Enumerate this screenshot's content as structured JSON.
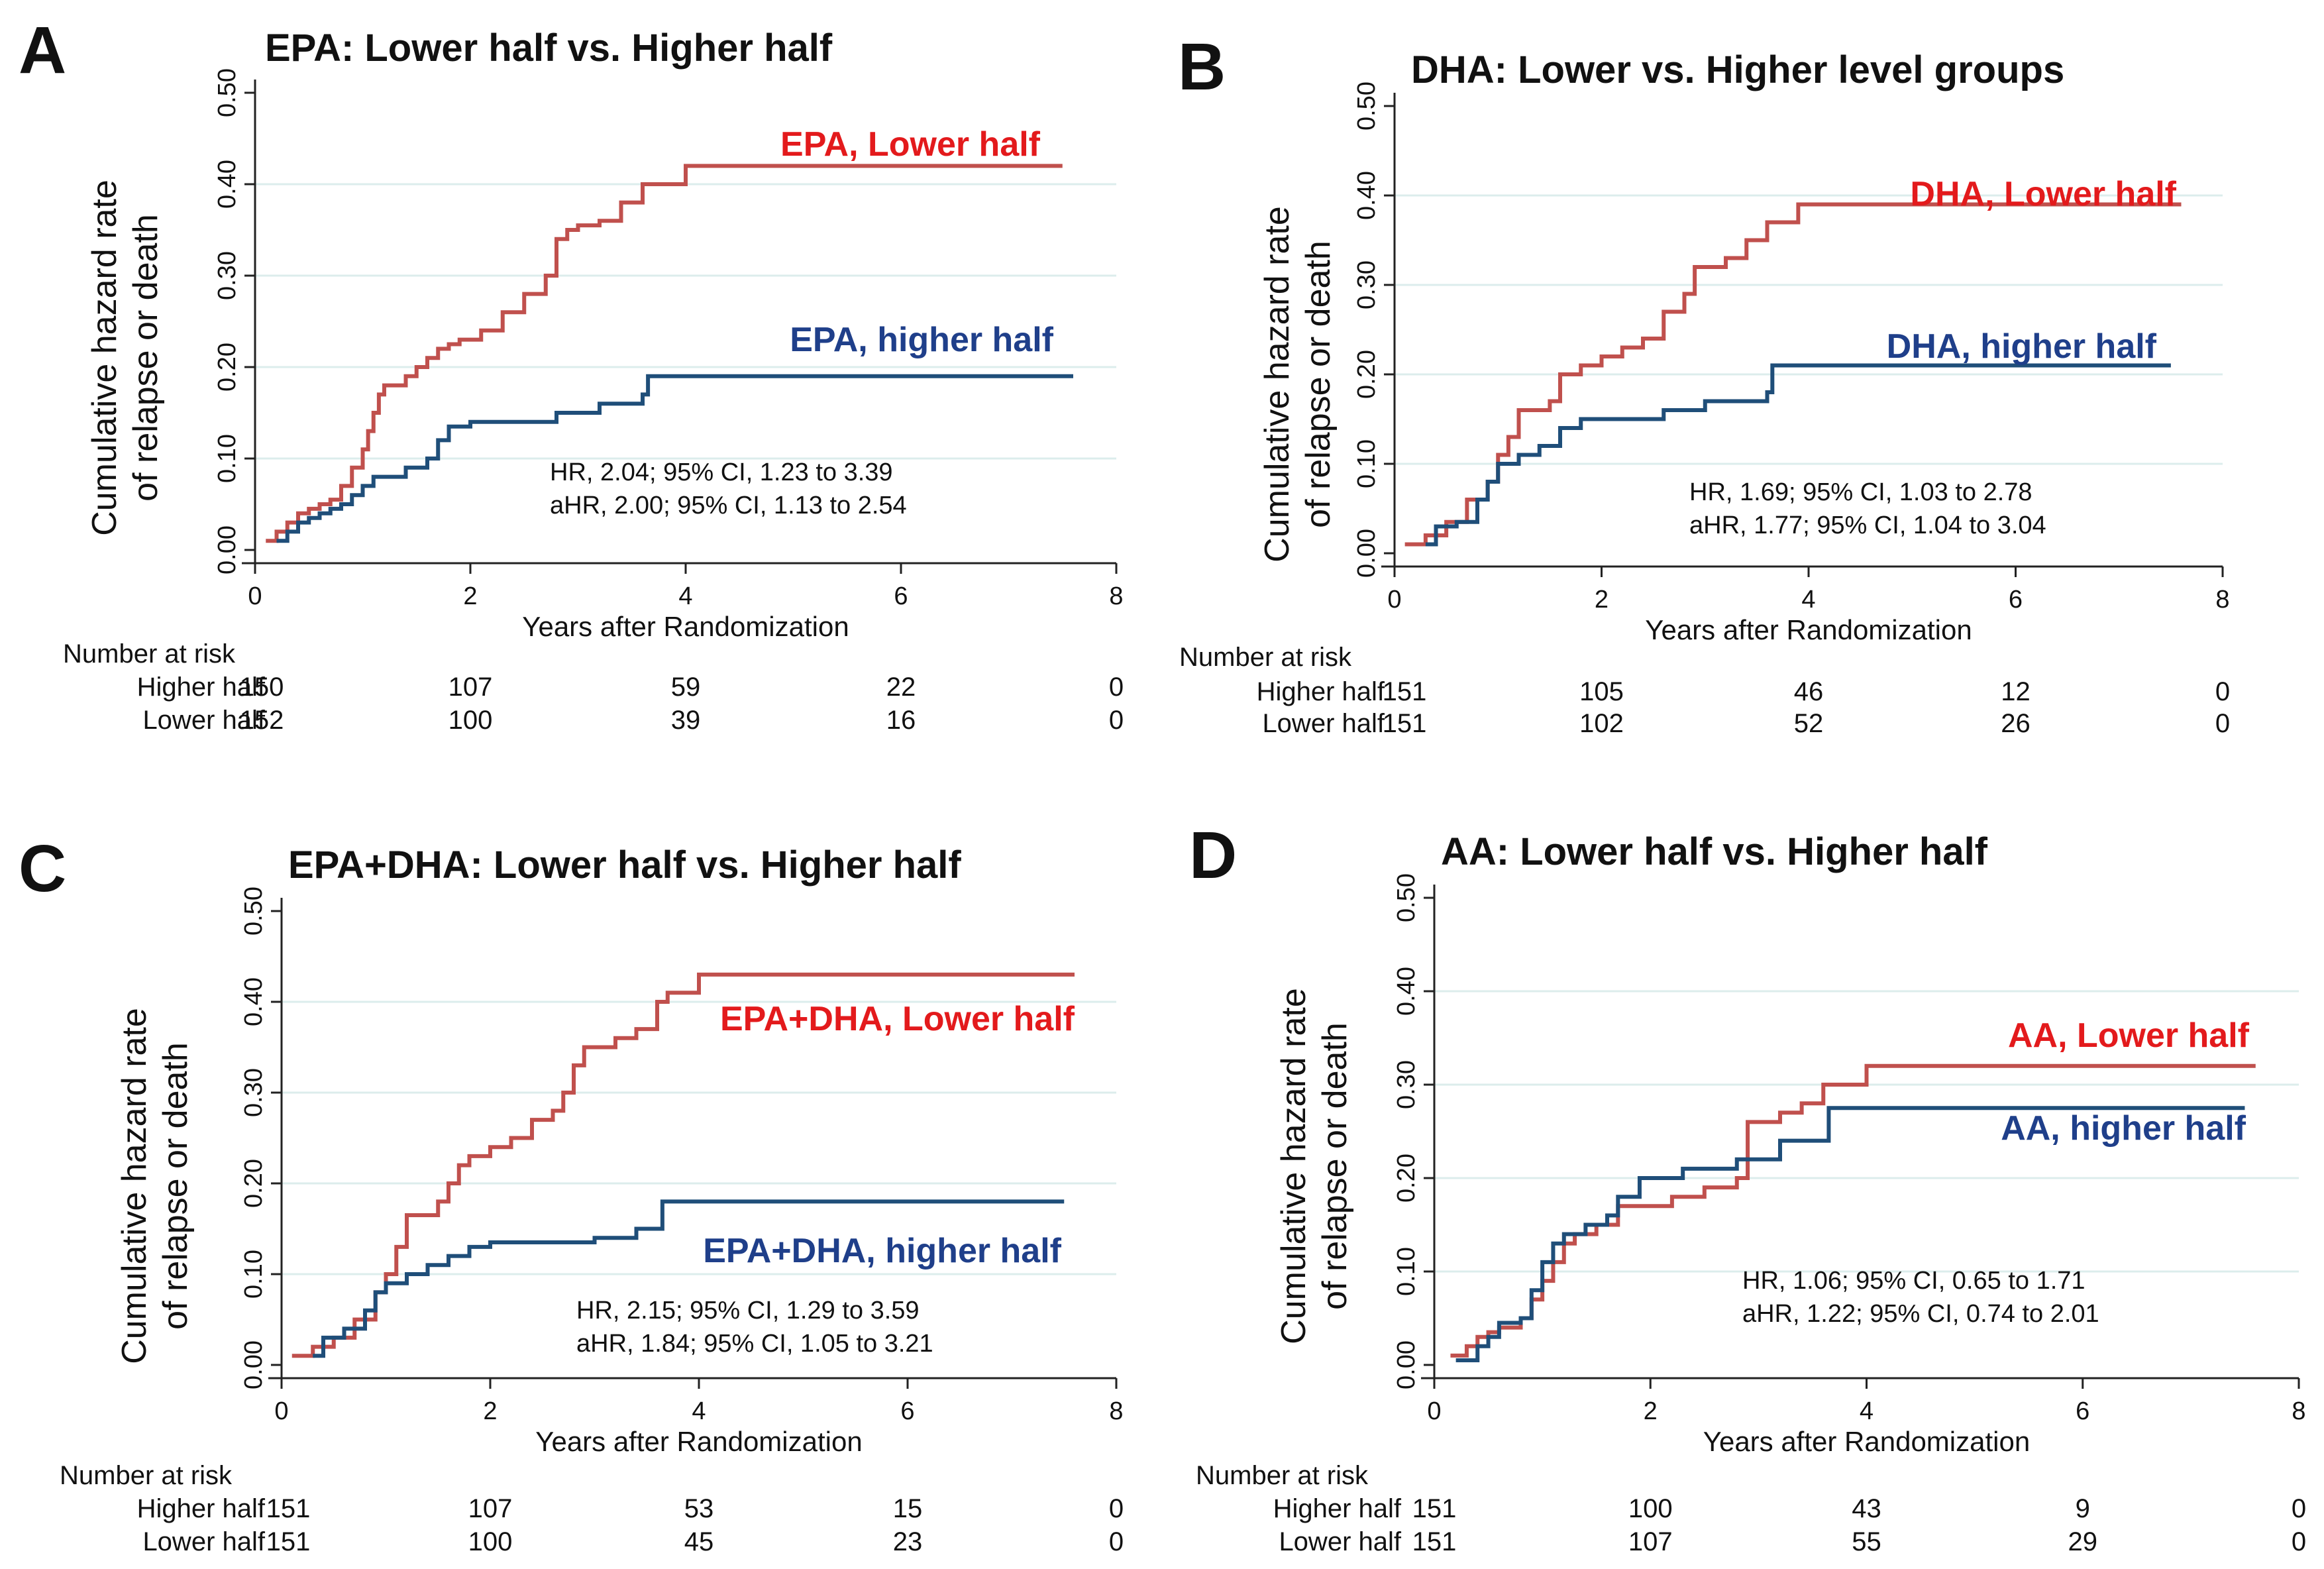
{
  "colors": {
    "lower": "#C0504D",
    "higher": "#1F4E79",
    "grid": "#DCEDEC",
    "axis": "#222222",
    "lower_label": "#E31A1C",
    "higher_label": "#1F3F8A"
  },
  "shared": {
    "ylabel_line1": "Cumulative hazard rate",
    "ylabel_line2": "of relapse or death",
    "xlabel": "Years after Randomization",
    "xticks": [
      0,
      2,
      4,
      6,
      8
    ],
    "yticks": [
      "0.00",
      "0.10",
      "0.20",
      "0.30",
      "0.40",
      "0.50"
    ],
    "risk_title": "Number at risk",
    "risk_higher_label": "Higher half",
    "risk_lower_label": "Lower half"
  },
  "chart_data": [
    {
      "type": "line",
      "panel": "A",
      "title": "EPA: Lower half vs. Higher half",
      "xlabel": "Years after Randomization",
      "ylabel": "Cumulative hazard rate of relapse or death",
      "xlim": [
        0,
        8
      ],
      "ylim": [
        0,
        0.5
      ],
      "series": [
        {
          "name": "EPA, Lower half",
          "group": "lower",
          "x": [
            0.1,
            0.2,
            0.3,
            0.4,
            0.5,
            0.6,
            0.7,
            0.8,
            0.9,
            1.0,
            1.05,
            1.1,
            1.15,
            1.2,
            1.25,
            1.3,
            1.4,
            1.5,
            1.6,
            1.7,
            1.8,
            1.9,
            2.0,
            2.1,
            2.3,
            2.5,
            2.7,
            2.8,
            2.9,
            3.0,
            3.2,
            3.4,
            3.6,
            4.0,
            7.5
          ],
          "y": [
            0.01,
            0.02,
            0.03,
            0.04,
            0.045,
            0.05,
            0.055,
            0.07,
            0.09,
            0.11,
            0.13,
            0.15,
            0.17,
            0.18,
            0.18,
            0.18,
            0.19,
            0.2,
            0.21,
            0.22,
            0.225,
            0.23,
            0.23,
            0.24,
            0.26,
            0.28,
            0.3,
            0.34,
            0.35,
            0.355,
            0.36,
            0.38,
            0.4,
            0.42,
            0.42
          ]
        },
        {
          "name": "EPA, higher half",
          "group": "higher",
          "x": [
            0.2,
            0.3,
            0.4,
            0.5,
            0.6,
            0.7,
            0.8,
            0.9,
            1.0,
            1.1,
            1.2,
            1.4,
            1.6,
            1.7,
            1.8,
            2.0,
            2.4,
            2.8,
            3.2,
            3.6,
            3.65,
            7.6
          ],
          "y": [
            0.01,
            0.02,
            0.03,
            0.035,
            0.04,
            0.045,
            0.05,
            0.06,
            0.07,
            0.08,
            0.08,
            0.09,
            0.1,
            0.12,
            0.135,
            0.14,
            0.14,
            0.15,
            0.16,
            0.17,
            0.19,
            0.19
          ]
        }
      ],
      "labels": {
        "lower": "EPA, Lower half",
        "higher": "EPA, higher half"
      },
      "stats": [
        "HR, 2.04; 95% CI, 1.23 to 3.39",
        "aHR, 2.00; 95% CI, 1.13 to 2.54"
      ],
      "risk": {
        "higher": [
          "150",
          "107",
          "59",
          "22",
          "0"
        ],
        "lower": [
          "152",
          "100",
          "39",
          "16",
          "0"
        ]
      }
    },
    {
      "type": "line",
      "panel": "B",
      "title": "DHA: Lower  vs. Higher level groups",
      "xlabel": "Years after Randomization",
      "ylabel": "Cumulative hazard rate of relapse or death",
      "xlim": [
        0,
        8
      ],
      "ylim": [
        0,
        0.5
      ],
      "series": [
        {
          "name": "DHA, Lower half",
          "group": "lower",
          "x": [
            0.1,
            0.3,
            0.5,
            0.7,
            0.9,
            1.0,
            1.1,
            1.2,
            1.5,
            1.6,
            1.8,
            2.0,
            2.2,
            2.4,
            2.6,
            2.8,
            2.9,
            3.2,
            3.4,
            3.6,
            3.9,
            7.6
          ],
          "y": [
            0.01,
            0.02,
            0.035,
            0.06,
            0.08,
            0.11,
            0.13,
            0.16,
            0.17,
            0.2,
            0.21,
            0.22,
            0.23,
            0.24,
            0.27,
            0.29,
            0.32,
            0.33,
            0.35,
            0.37,
            0.39,
            0.39
          ]
        },
        {
          "name": "DHA, higher half",
          "group": "higher",
          "x": [
            0.3,
            0.4,
            0.6,
            0.8,
            0.9,
            1.0,
            1.2,
            1.4,
            1.6,
            1.8,
            2.0,
            2.6,
            3.0,
            3.6,
            3.65,
            7.5
          ],
          "y": [
            0.01,
            0.03,
            0.035,
            0.06,
            0.08,
            0.1,
            0.11,
            0.12,
            0.14,
            0.15,
            0.15,
            0.16,
            0.17,
            0.18,
            0.21,
            0.21
          ]
        }
      ],
      "labels": {
        "lower": "DHA, Lower half",
        "higher": "DHA, higher half"
      },
      "stats": [
        "HR, 1.69; 95% CI, 1.03 to 2.78",
        "aHR, 1.77; 95% CI, 1.04 to 3.04"
      ],
      "risk": {
        "higher": [
          "151",
          "105",
          "46",
          "12",
          "0"
        ],
        "lower": [
          "151",
          "102",
          "52",
          "26",
          "0"
        ]
      }
    },
    {
      "type": "line",
      "panel": "C",
      "title": "EPA+DHA: Lower half vs. Higher half",
      "xlabel": "Years after Randomization",
      "ylabel": "Cumulative hazard rate of relapse or death",
      "xlim": [
        0,
        8
      ],
      "ylim": [
        0,
        0.5
      ],
      "series": [
        {
          "name": "EPA+DHA, Lower half",
          "group": "lower",
          "x": [
            0.1,
            0.3,
            0.5,
            0.7,
            0.9,
            1.0,
            1.1,
            1.2,
            1.3,
            1.5,
            1.6,
            1.7,
            1.8,
            2.0,
            2.2,
            2.4,
            2.6,
            2.7,
            2.8,
            2.9,
            3.2,
            3.4,
            3.6,
            3.7,
            4.0,
            7.6
          ],
          "y": [
            0.01,
            0.02,
            0.03,
            0.05,
            0.08,
            0.1,
            0.13,
            0.165,
            0.165,
            0.18,
            0.2,
            0.22,
            0.23,
            0.24,
            0.25,
            0.27,
            0.28,
            0.3,
            0.33,
            0.35,
            0.36,
            0.37,
            0.4,
            0.41,
            0.43,
            0.43
          ]
        },
        {
          "name": "EPA+DHA, higher half",
          "group": "higher",
          "x": [
            0.3,
            0.4,
            0.6,
            0.8,
            0.9,
            1.0,
            1.2,
            1.4,
            1.6,
            1.8,
            2.0,
            3.0,
            3.4,
            3.6,
            3.65,
            7.5
          ],
          "y": [
            0.01,
            0.03,
            0.04,
            0.06,
            0.08,
            0.09,
            0.1,
            0.11,
            0.12,
            0.13,
            0.135,
            0.14,
            0.15,
            0.15,
            0.18,
            0.18
          ]
        }
      ],
      "labels": {
        "lower": "EPA+DHA, Lower half",
        "higher": "EPA+DHA, higher half"
      },
      "stats": [
        "HR, 2.15; 95% CI, 1.29 to 3.59",
        "aHR, 1.84; 95% CI, 1.05 to 3.21"
      ],
      "risk": {
        "higher": [
          "151",
          "107",
          "53",
          "15",
          "0"
        ],
        "lower": [
          "151",
          "100",
          "45",
          "23",
          "0"
        ]
      }
    },
    {
      "type": "line",
      "panel": "D",
      "title": "AA: Lower half vs. Higher half",
      "xlabel": "Years after Randomization",
      "ylabel": "Cumulative hazard rate of relapse or death",
      "xlim": [
        0,
        8
      ],
      "ylim": [
        0,
        0.5
      ],
      "series": [
        {
          "name": "AA, Lower half",
          "group": "lower",
          "x": [
            0.15,
            0.3,
            0.4,
            0.5,
            0.6,
            0.8,
            0.9,
            1.0,
            1.1,
            1.2,
            1.3,
            1.5,
            1.7,
            1.9,
            2.2,
            2.5,
            2.8,
            2.9,
            3.2,
            3.4,
            3.6,
            3.7,
            4.0,
            7.6
          ],
          "y": [
            0.01,
            0.02,
            0.03,
            0.035,
            0.04,
            0.05,
            0.07,
            0.09,
            0.11,
            0.13,
            0.14,
            0.15,
            0.17,
            0.17,
            0.18,
            0.19,
            0.2,
            0.26,
            0.27,
            0.28,
            0.3,
            0.3,
            0.32,
            0.32
          ]
        },
        {
          "name": "AA, higher half",
          "group": "higher",
          "x": [
            0.2,
            0.4,
            0.5,
            0.6,
            0.8,
            0.9,
            1.0,
            1.1,
            1.2,
            1.4,
            1.6,
            1.7,
            1.9,
            2.3,
            2.8,
            3.2,
            3.6,
            3.65,
            7.5
          ],
          "y": [
            0.005,
            0.02,
            0.03,
            0.045,
            0.05,
            0.08,
            0.11,
            0.13,
            0.14,
            0.15,
            0.16,
            0.18,
            0.2,
            0.21,
            0.22,
            0.24,
            0.24,
            0.275,
            0.275
          ]
        }
      ],
      "labels": {
        "lower": "AA, Lower half",
        "higher": "AA, higher half"
      },
      "stats": [
        "HR, 1.06; 95% CI, 0.65 to 1.71",
        "aHR, 1.22; 95% CI, 0.74 to 2.01"
      ],
      "risk": {
        "higher": [
          "151",
          "100",
          "43",
          "9",
          "0"
        ],
        "lower": [
          "151",
          "107",
          "55",
          "29",
          "0"
        ]
      }
    }
  ]
}
